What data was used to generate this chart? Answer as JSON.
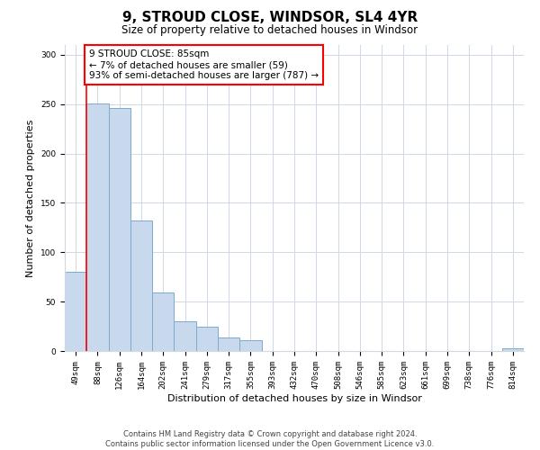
{
  "title": "9, STROUD CLOSE, WINDSOR, SL4 4YR",
  "subtitle": "Size of property relative to detached houses in Windsor",
  "xlabel": "Distribution of detached houses by size in Windsor",
  "ylabel": "Number of detached properties",
  "bar_labels": [
    "49sqm",
    "88sqm",
    "126sqm",
    "164sqm",
    "202sqm",
    "241sqm",
    "279sqm",
    "317sqm",
    "355sqm",
    "393sqm",
    "432sqm",
    "470sqm",
    "508sqm",
    "546sqm",
    "585sqm",
    "623sqm",
    "661sqm",
    "699sqm",
    "738sqm",
    "776sqm",
    "814sqm"
  ],
  "bar_heights": [
    80,
    251,
    246,
    132,
    59,
    30,
    25,
    14,
    11,
    0,
    0,
    0,
    0,
    0,
    0,
    0,
    0,
    0,
    0,
    0,
    3
  ],
  "bar_color": "#c8d9ee",
  "bar_edge_color": "#7aabcf",
  "ylim": [
    0,
    310
  ],
  "yticks": [
    0,
    50,
    100,
    150,
    200,
    250,
    300
  ],
  "red_line_x": 0.5,
  "annotation_title": "9 STROUD CLOSE: 85sqm",
  "annotation_line1": "← 7% of detached houses are smaller (59)",
  "annotation_line2": "93% of semi-detached houses are larger (787) →",
  "footer_line1": "Contains HM Land Registry data © Crown copyright and database right 2024.",
  "footer_line2": "Contains public sector information licensed under the Open Government Licence v3.0.",
  "bg_color": "#ffffff",
  "grid_color": "#d0d8e8",
  "title_fontsize": 11,
  "subtitle_fontsize": 8.5,
  "tick_fontsize": 6.5,
  "ylabel_fontsize": 8,
  "xlabel_fontsize": 8,
  "annotation_fontsize": 7.5,
  "footer_fontsize": 6
}
